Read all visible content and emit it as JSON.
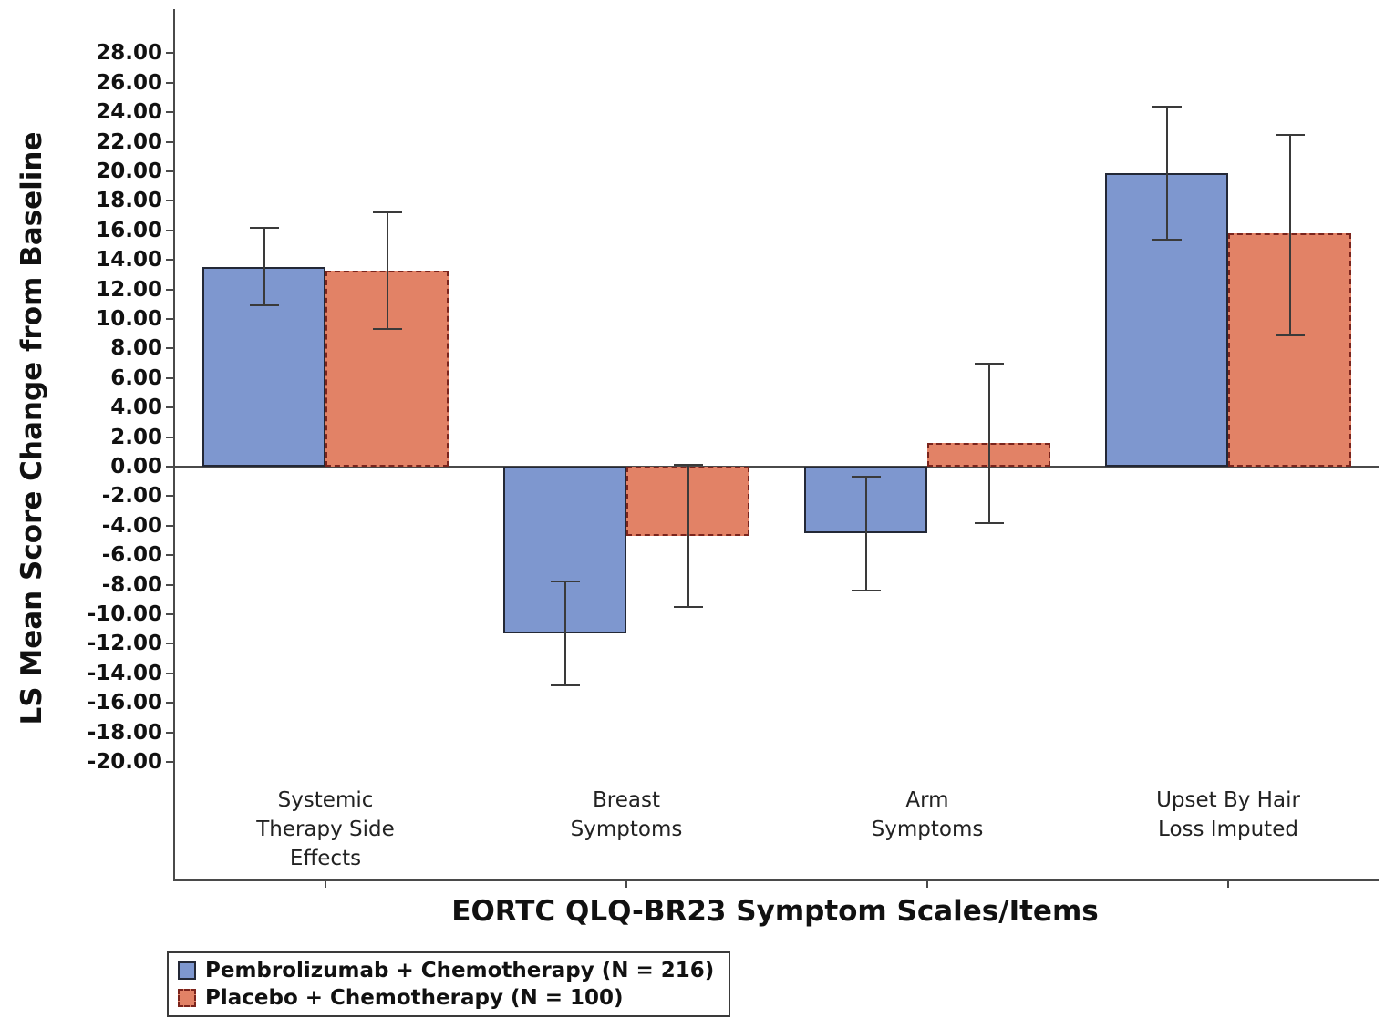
{
  "chart_data": {
    "type": "bar",
    "xlabel": "EORTC QLQ-BR23 Symptom Scales/Items",
    "ylabel": "LS Mean Score Change from Baseline",
    "categories": [
      [
        "Systemic",
        "Therapy Side",
        "Effects"
      ],
      [
        "Breast",
        "Symptoms"
      ],
      [
        "Arm",
        "Symptoms"
      ],
      [
        "Upset By Hair",
        "Loss Imputed"
      ]
    ],
    "y_axis": {
      "min": -20,
      "max": 28,
      "step": 2,
      "decimals": 2
    },
    "series": [
      {
        "name": "Pembrolizumab + Chemotherapy (N = 216)",
        "color": "#7e97cf",
        "border_style": "solid",
        "border_color": "#232836",
        "values": [
          13.5,
          -11.3,
          -4.5,
          19.9
        ],
        "err_low": [
          10.9,
          -14.8,
          -8.4,
          15.4
        ],
        "err_high": [
          16.2,
          -7.8,
          -0.7,
          24.4
        ]
      },
      {
        "name": "Placebo + Chemotherapy (N = 100)",
        "color": "#e28266",
        "border_style": "dashed",
        "border_color": "#7b241c",
        "values": [
          13.3,
          -4.7,
          1.6,
          15.8
        ],
        "err_low": [
          9.3,
          -9.5,
          -3.8,
          8.9
        ],
        "err_high": [
          17.2,
          0.1,
          7.0,
          22.5
        ]
      }
    ],
    "legend_position": "bottom-left",
    "grid": false
  }
}
